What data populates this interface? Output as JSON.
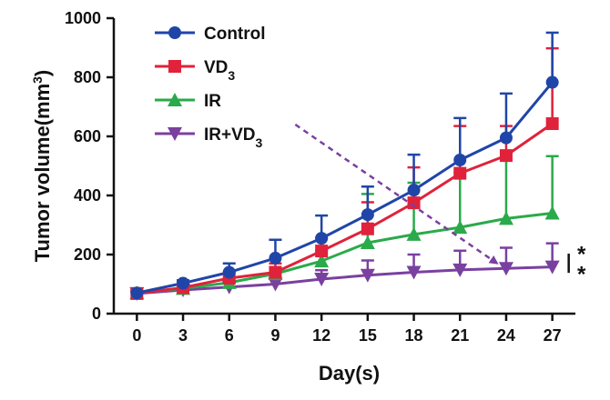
{
  "chart_data": {
    "type": "line",
    "title": "",
    "xlabel": "Day(s)",
    "ylabel": "Tumor volume(mm3)",
    "ylabel_main": "Tumor volume(mm",
    "ylabel_sup": "3",
    "ylabel_close": ")",
    "x": [
      0,
      3,
      6,
      9,
      12,
      15,
      18,
      21,
      24,
      27
    ],
    "x_ticks": [
      "0",
      "3",
      "6",
      "9",
      "12",
      "15",
      "18",
      "21",
      "24",
      "27"
    ],
    "y_ticks": [
      "0",
      "200",
      "400",
      "600",
      "800",
      "1000"
    ],
    "ylim": [
      0,
      1000
    ],
    "xlim": [
      -1.5,
      28.5
    ],
    "legend_position": "top-left",
    "series": [
      {
        "name": "Control",
        "name_main": "Control",
        "name_sub": "",
        "color": "#2045a8",
        "marker": "circle",
        "values": [
          70,
          103,
          140,
          188,
          255,
          335,
          418,
          520,
          595,
          783
        ],
        "errors": [
          8,
          10,
          30,
          62,
          77,
          95,
          120,
          142,
          150,
          168
        ]
      },
      {
        "name": "VD3",
        "name_main": "VD",
        "name_sub": "3",
        "color": "#e0223a",
        "marker": "square",
        "values": [
          68,
          88,
          120,
          140,
          212,
          287,
          375,
          475,
          535,
          643
        ],
        "errors": [
          6,
          8,
          20,
          30,
          45,
          90,
          120,
          160,
          100,
          255
        ]
      },
      {
        "name": "IR",
        "name_main": "IR",
        "name_sub": "",
        "color": "#2aaa4a",
        "marker": "triangle-up",
        "values": [
          70,
          85,
          105,
          135,
          178,
          240,
          268,
          292,
          322,
          340
        ],
        "errors": [
          5,
          8,
          15,
          20,
          35,
          165,
          175,
          185,
          200,
          193
        ]
      },
      {
        "name": "IR+VD3",
        "name_main": "IR+VD",
        "name_sub": "3",
        "color": "#7a40a0",
        "marker": "triangle-down",
        "values": [
          68,
          80,
          90,
          100,
          117,
          130,
          140,
          148,
          153,
          158
        ],
        "errors": [
          5,
          8,
          15,
          25,
          30,
          50,
          60,
          65,
          70,
          80
        ]
      }
    ],
    "annotations": [
      {
        "type": "arrow",
        "style": "dashed",
        "color": "#7a40a0",
        "from_series": "IR+VD3",
        "from_day": 10,
        "from_value": 640,
        "to_day": 24,
        "to_value": 155
      },
      {
        "type": "significance",
        "text": "**",
        "between_series": [
          "IR+VD3",
          "Control"
        ],
        "at_day": 27
      }
    ]
  }
}
